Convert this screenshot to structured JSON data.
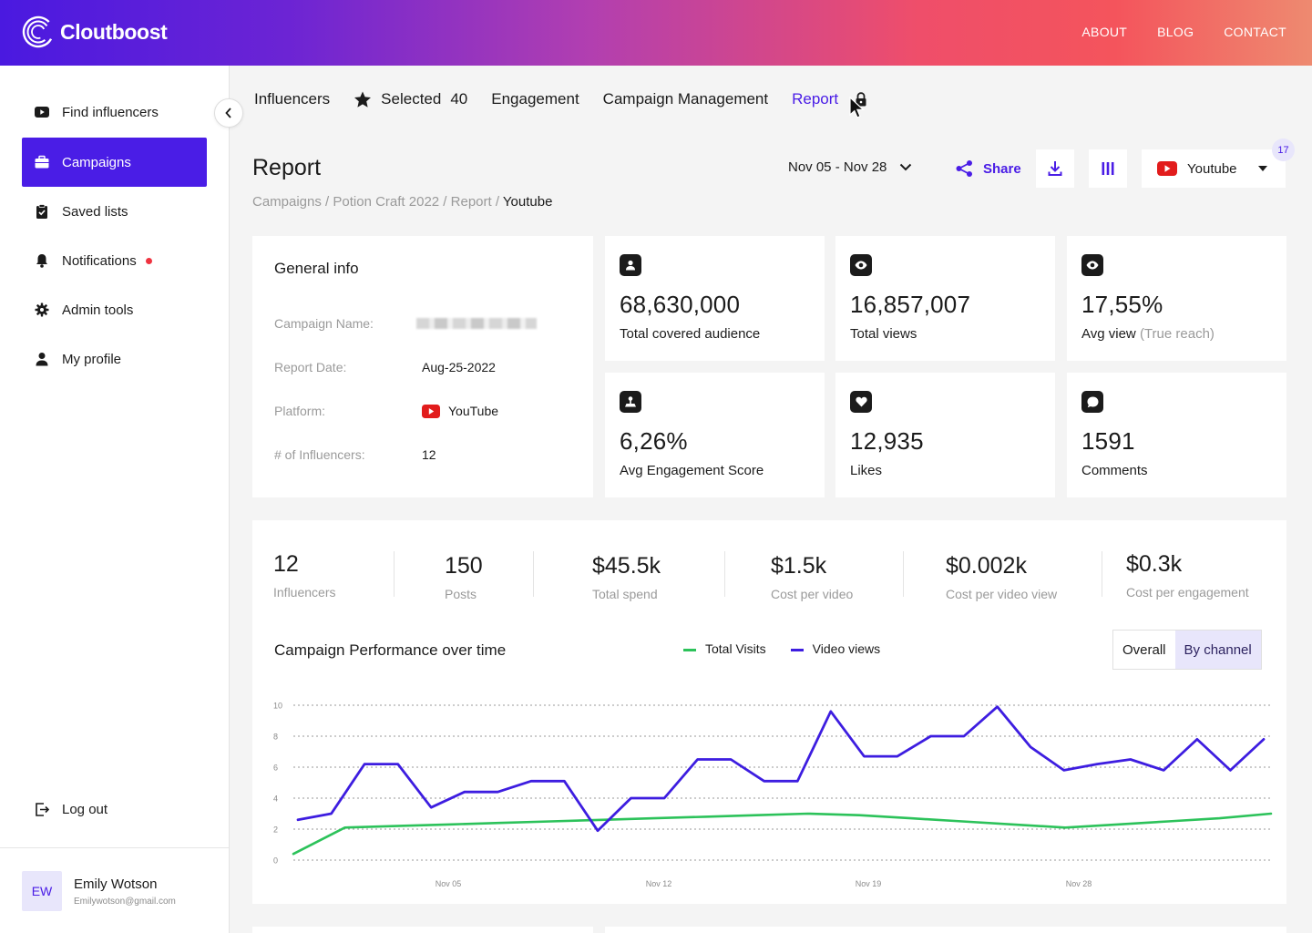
{
  "header": {
    "brand": "Cloutboost",
    "nav": [
      "ABOUT",
      "BLOG",
      "CONTACT"
    ]
  },
  "sidebar": {
    "items": [
      {
        "label": "Find influencers",
        "icon": "youtube-icon"
      },
      {
        "label": "Campaigns",
        "icon": "briefcase-icon",
        "active": true
      },
      {
        "label": "Saved lists",
        "icon": "clipboard-check-icon"
      },
      {
        "label": "Notifications",
        "icon": "bell-icon",
        "dot": true
      },
      {
        "label": "Admin tools",
        "icon": "gear-icon"
      },
      {
        "label": "My profile",
        "icon": "person-icon"
      }
    ],
    "logout": "Log out",
    "user": {
      "initials": "EW",
      "name": "Emily Wotson",
      "email": "Emilywotson@gmail.com"
    }
  },
  "tabs": {
    "influencers": "Influencers",
    "selected": "Selected",
    "selected_count": "40",
    "engagement": "Engagement",
    "campaign_management": "Campaign Management",
    "report": "Report"
  },
  "page": {
    "title": "Report",
    "breadcrumb": [
      "Campaigns",
      "Potion Craft 2022",
      "Report"
    ],
    "breadcrumb_current": "Youtube",
    "date_range": "Nov 05 - Nov 28",
    "share": "Share",
    "platform": "Youtube",
    "platform_badge": "17"
  },
  "general_info": {
    "title": "General info",
    "campaign_name_label": "Campaign Name:",
    "report_date_label": "Report Date:",
    "report_date": "Aug-25-2022",
    "platform_label": "Platform:",
    "platform": "YouTube",
    "influencers_label": "# of Influencers:",
    "influencers": "12"
  },
  "stats": [
    {
      "value": "68,630,000",
      "label": "Total covered audience",
      "icon": "person-icon"
    },
    {
      "value": "16,857,007",
      "label": "Total views",
      "icon": "eye-icon"
    },
    {
      "value": "17,55%",
      "label": "Avg view",
      "label_extra": "(True reach)",
      "icon": "eye-icon"
    },
    {
      "value": "6,26%",
      "label": "Avg Engagement Score",
      "icon": "joystick-icon"
    },
    {
      "value": "12,935",
      "label": "Likes",
      "icon": "heart-icon"
    },
    {
      "value": "1591",
      "label": "Comments",
      "icon": "comment-icon"
    }
  ],
  "kpis": [
    {
      "value": "12",
      "label": "Influencers"
    },
    {
      "value": "150",
      "label": "Posts"
    },
    {
      "value": "$45.5k",
      "label": "Total spend"
    },
    {
      "value": "$1.5k",
      "label": "Cost per video"
    },
    {
      "value": "$0.002k",
      "label": "Cost per video view"
    },
    {
      "value": "$0.3k",
      "label": "Cost per engagement"
    }
  ],
  "performance": {
    "title": "Campaign Performance over time",
    "toggle": [
      "Overall",
      "By channel"
    ],
    "toggle_selected": "By channel"
  },
  "chart_data": {
    "type": "line",
    "ylim": [
      0,
      10
    ],
    "yticks": [
      "0",
      "2",
      "4",
      "6",
      "8",
      "10"
    ],
    "xticks": [
      "Nov 05",
      "Nov 12",
      "Nov 19",
      "Nov 28"
    ],
    "grid": true,
    "legend": "top",
    "series": [
      {
        "name": "Total Visits",
        "color": "#2cc25a",
        "values": [
          0.4,
          2.1,
          2.2,
          2.3,
          2.4,
          2.5,
          2.6,
          2.7,
          2.8,
          2.9,
          3.0,
          2.9,
          2.7,
          2.5,
          2.3,
          2.1,
          2.3,
          2.5,
          2.7,
          3.0
        ]
      },
      {
        "name": "Video views",
        "color": "#3d1de0",
        "values": [
          2.6,
          3.0,
          6.2,
          6.2,
          3.4,
          4.4,
          4.4,
          5.1,
          5.1,
          1.9,
          4.0,
          4.0,
          6.5,
          6.5,
          5.1,
          5.1,
          9.6,
          6.7,
          6.7,
          8.0,
          8.0,
          9.9,
          7.3,
          5.8,
          6.2,
          6.5,
          5.8,
          7.8,
          5.8,
          7.8
        ]
      }
    ]
  },
  "colors": {
    "accent": "#4a1de6",
    "notification": "#ef3340",
    "youtube": "#e21c1c"
  }
}
